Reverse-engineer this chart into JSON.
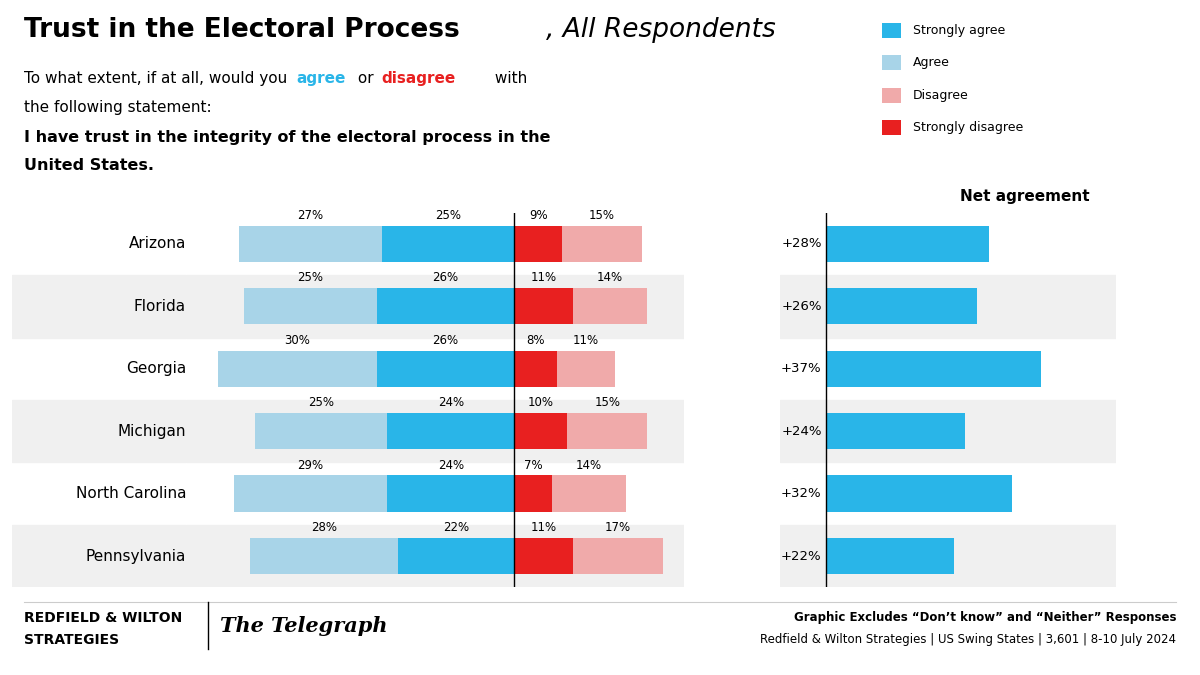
{
  "title_bold": "Trust in the Electoral Process",
  "title_italic": ", All Respondents",
  "subtitle1_plain": "To what extent, if at all, would you ",
  "subtitle1_agree": "agree",
  "subtitle1_mid": " or ",
  "subtitle1_disagree": "disagree",
  "subtitle1_end": " with",
  "subtitle2": "the following statement:",
  "statement_line1": "I have trust in the integrity of the electoral process in the",
  "statement_line2": "United States.",
  "states": [
    "Arizona",
    "Florida",
    "Georgia",
    "Michigan",
    "North Carolina",
    "Pennsylvania"
  ],
  "strongly_agree": [
    27,
    25,
    30,
    25,
    29,
    28
  ],
  "agree": [
    25,
    26,
    26,
    24,
    24,
    22
  ],
  "strongly_disagree": [
    9,
    11,
    8,
    10,
    7,
    11
  ],
  "disagree": [
    15,
    14,
    11,
    15,
    14,
    17
  ],
  "net_agreement": [
    28,
    26,
    37,
    24,
    32,
    22
  ],
  "color_strongly_agree": "#29b5e8",
  "color_agree": "#a8d4e8",
  "color_strongly_disagree": "#e82020",
  "color_disagree": "#f0aaaa",
  "color_net_bar": "#29b5e8",
  "color_agree_text": "#29b5e8",
  "color_disagree_text": "#e82020",
  "row_bg_color": "#f0f0f0",
  "net_agreement_label": "Net agreement",
  "footer_brand": "REDFIELD & WILTON",
  "footer_brand2": "STRATEGIES",
  "footer_separator": "|",
  "footer_telegraph": "The Telegraph",
  "footer_right1": "Graphic Excludes “Don’t know” and “Neither” Responses",
  "footer_right2": "Redfield & Wilton Strategies | US Swing States | 3,601 | 8-10 July 2024"
}
